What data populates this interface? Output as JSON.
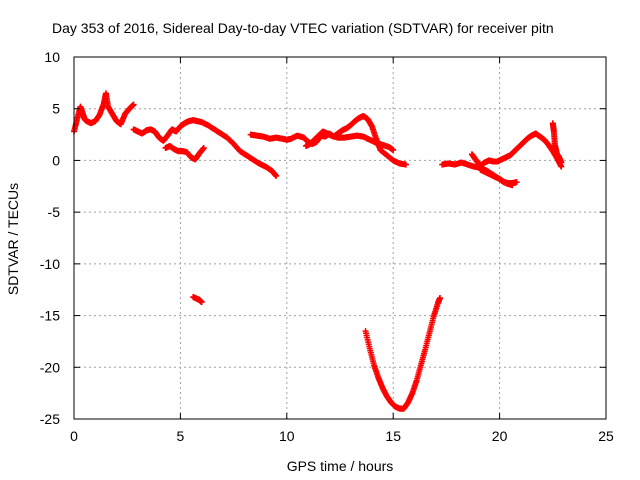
{
  "chart_data": {
    "type": "scatter",
    "title": "Day 353 of 2016, Sidereal Day-to-day VTEC variation (SDTVAR) for receiver pitn",
    "xlabel": "GPS time / hours",
    "ylabel": "SDTVAR / TECUs",
    "xlim": [
      0,
      25
    ],
    "ylim": [
      -25,
      10
    ],
    "xticks": [
      0,
      5,
      10,
      15,
      20,
      25
    ],
    "yticks": [
      -25,
      -20,
      -15,
      -10,
      -5,
      0,
      5,
      10
    ],
    "grid": true,
    "marker": "+",
    "series": [
      {
        "name": "SDTVAR",
        "color": "#ff0000",
        "segments": [
          {
            "x": [
              0.0,
              0.15,
              0.3,
              0.4,
              0.5,
              0.6,
              0.8,
              1.0,
              1.2,
              1.4,
              1.5,
              1.6,
              1.8,
              2.0,
              2.2,
              2.4,
              2.6,
              2.8
            ],
            "y": [
              2.8,
              4.0,
              5.2,
              4.6,
              4.0,
              3.8,
              3.6,
              3.8,
              4.4,
              5.5,
              6.5,
              5.2,
              4.5,
              3.8,
              3.5,
              4.5,
              5.0,
              5.4
            ]
          },
          {
            "x": [
              2.8,
              3.0,
              3.2,
              3.4,
              3.6,
              3.8,
              4.0,
              4.2,
              4.4,
              4.6,
              4.8,
              5.0,
              5.2,
              5.4,
              5.6,
              5.8,
              6.0,
              6.3,
              6.6,
              6.9,
              7.2,
              7.5,
              7.8,
              8.1,
              8.4,
              8.7,
              9.0,
              9.3,
              9.5
            ],
            "y": [
              3.0,
              2.8,
              2.6,
              2.9,
              3.0,
              2.8,
              2.2,
              1.9,
              2.4,
              3.0,
              2.8,
              3.3,
              3.6,
              3.8,
              3.9,
              3.8,
              3.7,
              3.4,
              3.0,
              2.6,
              2.2,
              1.6,
              0.9,
              0.5,
              0.1,
              -0.3,
              -0.6,
              -1.0,
              -1.5
            ]
          },
          {
            "x": [
              4.3,
              4.5,
              4.7,
              4.9,
              5.1,
              5.3,
              5.5,
              5.7,
              5.9,
              6.1
            ],
            "y": [
              1.2,
              1.4,
              1.1,
              0.9,
              0.9,
              0.8,
              0.3,
              0.1,
              0.7,
              1.2
            ]
          },
          {
            "x": [
              5.6,
              5.8,
              5.9,
              6.0
            ],
            "y": [
              -13.2,
              -13.4,
              -13.5,
              -13.7
            ]
          },
          {
            "x": [
              8.3,
              8.6,
              8.9,
              9.2,
              9.5,
              9.8,
              10.0,
              10.2,
              10.5,
              10.8,
              11.0,
              11.2,
              11.4,
              11.6,
              11.8,
              12.0,
              12.2,
              12.4,
              12.6,
              12.8,
              13.0,
              13.2,
              13.4,
              13.6,
              13.8,
              14.0,
              14.2,
              14.4,
              14.7,
              15.0,
              15.3,
              15.6
            ],
            "y": [
              2.5,
              2.4,
              2.3,
              2.1,
              2.2,
              2.1,
              2.0,
              2.1,
              2.4,
              2.2,
              1.8,
              1.6,
              1.8,
              2.4,
              2.3,
              2.6,
              2.3,
              2.6,
              2.9,
              3.1,
              3.4,
              3.8,
              4.1,
              4.3,
              4.0,
              3.3,
              2.1,
              1.0,
              0.5,
              0.0,
              -0.3,
              -0.4
            ]
          },
          {
            "x": [
              10.9,
              11.1,
              11.3,
              11.5,
              11.7,
              11.9,
              12.1,
              12.4,
              12.7,
              13.0,
              13.3,
              13.6,
              13.9,
              14.2,
              14.5,
              14.8,
              15.0
            ],
            "y": [
              1.4,
              1.6,
              2.0,
              2.4,
              2.8,
              2.6,
              2.4,
              2.2,
              2.2,
              2.3,
              2.4,
              2.3,
              2.0,
              1.7,
              1.5,
              1.3,
              1.0
            ]
          },
          {
            "x": [
              13.7,
              13.9,
              14.1,
              14.3,
              14.5,
              14.7,
              14.9,
              15.1,
              15.3,
              15.5,
              15.7,
              15.9,
              16.1,
              16.3,
              16.5,
              16.7,
              16.9,
              17.1,
              17.2
            ],
            "y": [
              -16.5,
              -18.2,
              -19.8,
              -21.0,
              -22.0,
              -22.8,
              -23.4,
              -23.8,
              -24.0,
              -24.0,
              -23.4,
              -22.5,
              -21.3,
              -19.8,
              -18.3,
              -16.7,
              -15.1,
              -13.8,
              -13.3
            ]
          },
          {
            "x": [
              17.3,
              17.6,
              17.9,
              18.2,
              18.5,
              18.8,
              19.1,
              19.4,
              19.7,
              20.0,
              20.2,
              20.4,
              20.6,
              20.8
            ],
            "y": [
              -0.4,
              -0.3,
              -0.4,
              -0.2,
              -0.4,
              -0.6,
              -0.7,
              -1.0,
              -1.4,
              -1.8,
              -2.1,
              -2.2,
              -2.2,
              -2.1
            ]
          },
          {
            "x": [
              18.7,
              18.9,
              19.1,
              19.3,
              19.5,
              19.7,
              19.9,
              20.1,
              20.3,
              20.5,
              20.7,
              20.9,
              21.1,
              21.3,
              21.5,
              21.7,
              21.9,
              22.1,
              22.3,
              22.5,
              22.7,
              22.9
            ],
            "y": [
              0.6,
              0.0,
              -0.5,
              -0.2,
              0.0,
              -0.1,
              -0.1,
              0.1,
              0.3,
              0.5,
              0.9,
              1.3,
              1.7,
              2.1,
              2.4,
              2.6,
              2.3,
              2.0,
              1.5,
              0.9,
              0.2,
              -0.6
            ]
          },
          {
            "x": [
              19.1,
              19.4,
              19.7,
              20.0,
              20.3,
              20.6
            ],
            "y": [
              -0.9,
              -1.2,
              -1.5,
              -1.8,
              -2.2,
              -2.4
            ]
          },
          {
            "x": [
              22.5,
              22.55,
              22.6,
              22.7,
              22.8,
              22.9
            ],
            "y": [
              3.6,
              2.8,
              1.5,
              0.6,
              0.3,
              -0.2
            ]
          }
        ]
      }
    ]
  }
}
